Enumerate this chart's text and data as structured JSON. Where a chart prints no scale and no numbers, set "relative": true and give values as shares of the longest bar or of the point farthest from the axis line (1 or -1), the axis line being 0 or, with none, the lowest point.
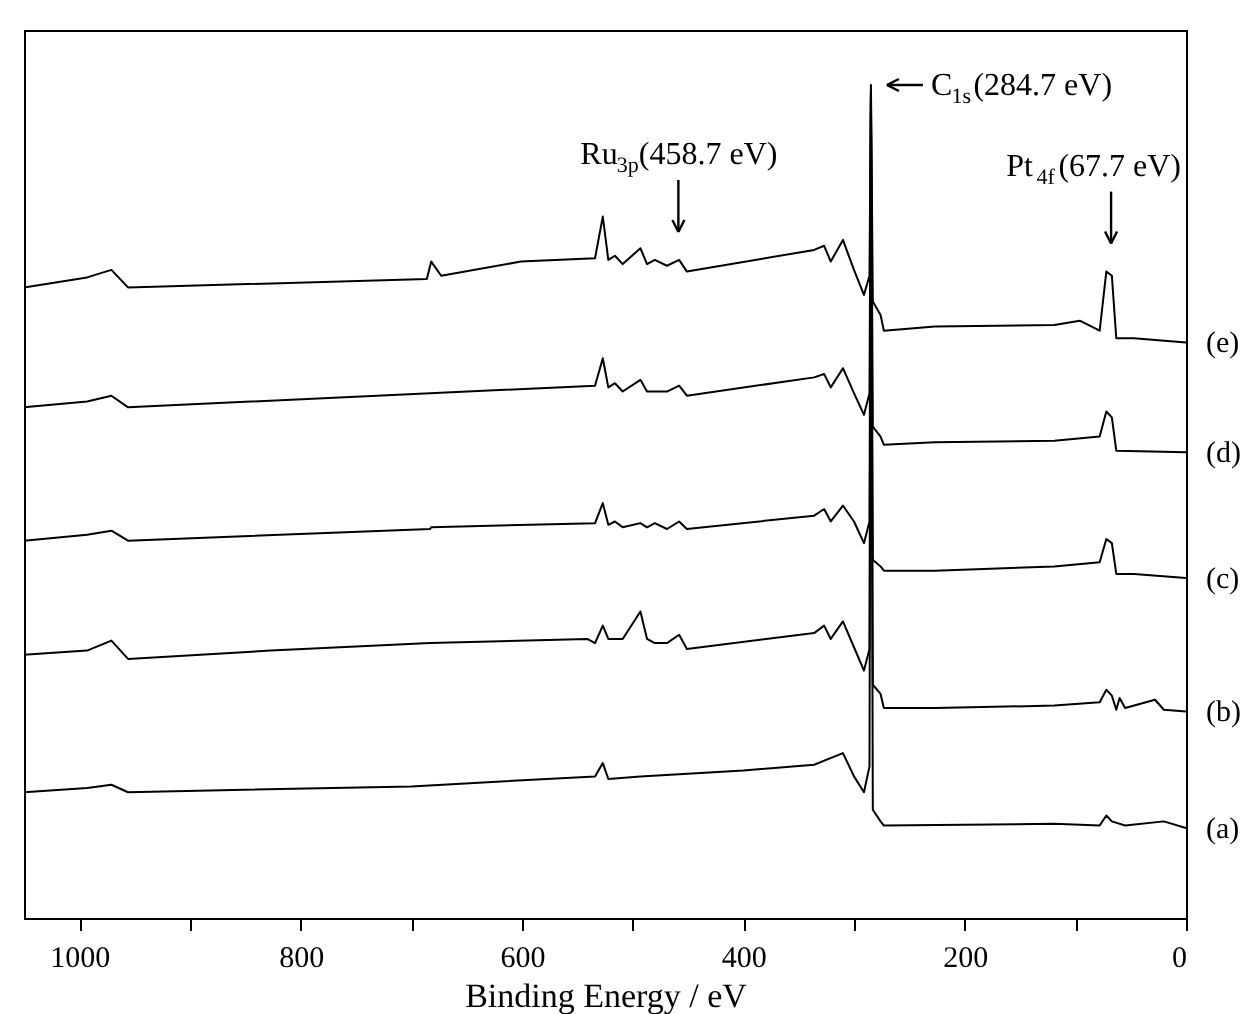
{
  "chart_data": {
    "type": "line",
    "xlabel": "Binding Energy / eV",
    "relative": true,
    "xlim": [
      1050,
      0
    ],
    "xticks": [
      1000,
      {
        "value": 900,
        "label": null
      },
      800,
      {
        "value": 700,
        "label": null
      },
      600,
      {
        "value": 500,
        "label": null
      },
      400,
      {
        "value": 300,
        "label": null
      },
      200,
      {
        "value": 100,
        "label": null
      },
      0
    ],
    "grid": false,
    "marker": "none",
    "line_style": "solid",
    "series": [
      {
        "name": "(a)",
        "color": "#000000",
        "x": [
          1050,
          993,
          971,
          956,
          700,
          534,
          527,
          522,
          493,
          400,
          336,
          310,
          300,
          291,
          286,
          284.7,
          283,
          276,
          273,
          119,
          78,
          72,
          67,
          55,
          20,
          0
        ],
        "values": [
          0.151,
          0.156,
          0.16,
          0.151,
          0.158,
          0.17,
          0.186,
          0.167,
          0.17,
          0.177,
          0.184,
          0.198,
          0.17,
          0.151,
          0.182,
          0.981,
          0.13,
          0.116,
          0.111,
          0.113,
          0.111,
          0.123,
          0.116,
          0.111,
          0.116,
          0.108
        ]
      },
      {
        "name": "(b)",
        "color": "#000000",
        "x": [
          1050,
          993,
          971,
          956,
          827,
          683,
          541,
          534,
          527,
          522,
          509,
          493,
          487,
          480,
          469,
          458,
          451,
          336,
          327,
          321,
          310,
          300,
          291,
          286,
          284.7,
          283,
          276,
          273,
          227,
          119,
          78,
          72,
          67,
          63,
          60,
          55,
          28,
          20,
          0
        ],
        "values": [
          0.316,
          0.321,
          0.333,
          0.311,
          0.321,
          0.33,
          0.335,
          0.33,
          0.351,
          0.335,
          0.335,
          0.368,
          0.335,
          0.33,
          0.33,
          0.34,
          0.323,
          0.342,
          0.351,
          0.335,
          0.356,
          0.325,
          0.297,
          0.323,
          0.986,
          0.28,
          0.269,
          0.252,
          0.252,
          0.255,
          0.259,
          0.274,
          0.267,
          0.25,
          0.264,
          0.252,
          0.262,
          0.25,
          0.248
        ]
      },
      {
        "name": "(c)",
        "color": "#000000",
        "x": [
          1050,
          993,
          971,
          956,
          683,
          682,
          534,
          527,
          522,
          516,
          509,
          493,
          487,
          480,
          469,
          458,
          451,
          336,
          327,
          321,
          310,
          300,
          291,
          286,
          284.7,
          283,
          276,
          273,
          227,
          119,
          78,
          72,
          67,
          63,
          47,
          0
        ],
        "values": [
          0.453,
          0.46,
          0.465,
          0.453,
          0.467,
          0.469,
          0.474,
          0.498,
          0.472,
          0.476,
          0.469,
          0.474,
          0.469,
          0.474,
          0.467,
          0.476,
          0.467,
          0.483,
          0.491,
          0.476,
          0.495,
          0.476,
          0.45,
          0.476,
          0.991,
          0.43,
          0.422,
          0.417,
          0.417,
          0.422,
          0.427,
          0.455,
          0.45,
          0.413,
          0.413,
          0.408
        ]
      },
      {
        "name": "(d)",
        "color": "#000000",
        "x": [
          1050,
          993,
          971,
          956,
          683,
          534,
          527,
          522,
          516,
          509,
          493,
          487,
          469,
          458,
          451,
          336,
          327,
          321,
          310,
          300,
          291,
          286,
          284.7,
          283,
          276,
          273,
          227,
          119,
          78,
          72,
          67,
          63,
          0
        ],
        "values": [
          0.613,
          0.62,
          0.627,
          0.613,
          0.63,
          0.639,
          0.672,
          0.637,
          0.642,
          0.632,
          0.646,
          0.632,
          0.632,
          0.639,
          0.627,
          0.649,
          0.653,
          0.637,
          0.66,
          0.63,
          0.604,
          0.63,
          0.995,
          0.59,
          0.578,
          0.568,
          0.571,
          0.573,
          0.578,
          0.608,
          0.601,
          0.561,
          0.559
        ]
      },
      {
        "name": "(e)",
        "color": "#000000",
        "x": [
          1050,
          993,
          971,
          956,
          686,
          682,
          673,
          601,
          534,
          527,
          522,
          516,
          509,
          493,
          487,
          480,
          469,
          458,
          451,
          336,
          327,
          321,
          310,
          300,
          291,
          286,
          284.7,
          283,
          276,
          273,
          227,
          119,
          96,
          78,
          72,
          67,
          63,
          47,
          0
        ],
        "values": [
          0.757,
          0.769,
          0.778,
          0.757,
          0.767,
          0.788,
          0.771,
          0.788,
          0.792,
          0.842,
          0.79,
          0.795,
          0.785,
          0.804,
          0.785,
          0.79,
          0.783,
          0.79,
          0.776,
          0.802,
          0.807,
          0.788,
          0.814,
          0.778,
          0.748,
          0.771,
          1.0,
          0.74,
          0.724,
          0.705,
          0.71,
          0.712,
          0.717,
          0.705,
          0.776,
          0.771,
          0.696,
          0.696,
          0.691
        ]
      }
    ],
    "annotations": [
      {
        "text": "Ru$_{3p}$(458.7 eV)",
        "x": 458.7,
        "y": 0.79
      },
      {
        "text": "C$_{1s}$(284.7 eV)",
        "x": 284.7,
        "y": 1.0
      },
      {
        "text": "Pt$_{4f}$(67.7 eV)",
        "x": 67.7,
        "y": 0.776
      }
    ]
  }
}
